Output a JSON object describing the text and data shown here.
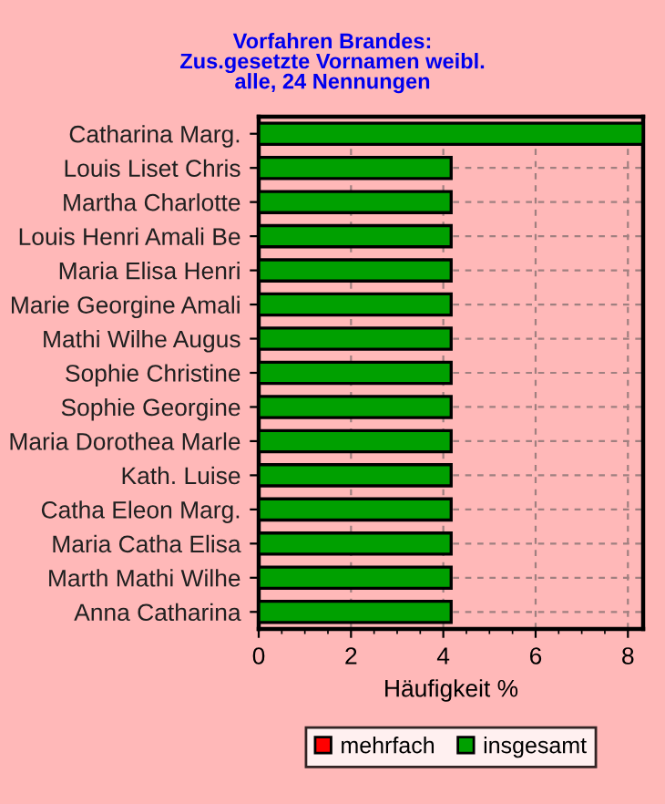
{
  "chart_data": {
    "type": "bar",
    "orientation": "horizontal",
    "title": "Vorfahren Brandes:\nZus.gesetzte Vornamen weibl.\nalle, 24 Nennungen",
    "xlabel": "Häufigkeit %",
    "categories": [
      "Catharina Marg.",
      "Louis Liset Chris",
      "Martha Charlotte",
      "Louis Henri Amali Be",
      "Maria Elisa Henri",
      "Marie Georgine Amali",
      "Mathi Wilhe Augus",
      "Sophie Christine",
      "Sophie Georgine",
      "Maria Dorothea Marle",
      "Kath. Luise",
      "Catha Eleon Marg.",
      "Maria Catha Elisa",
      "Marth Mathi Wilhe",
      "Anna Catharina"
    ],
    "series": [
      {
        "name": "mehrfach",
        "color": "#ff0000",
        "values": [
          null,
          null,
          null,
          null,
          null,
          null,
          null,
          null,
          null,
          null,
          null,
          null,
          null,
          null,
          null
        ]
      },
      {
        "name": "insgesamt",
        "color": "#00a000",
        "values": [
          8.33,
          4.17,
          4.17,
          4.17,
          4.17,
          4.17,
          4.17,
          4.17,
          4.17,
          4.17,
          4.17,
          4.17,
          4.17,
          4.17,
          4.17
        ]
      }
    ],
    "xlim": [
      0,
      8.33
    ],
    "xticks": [
      0,
      2,
      4,
      6,
      8
    ],
    "grid": true,
    "legend": "bottom"
  }
}
